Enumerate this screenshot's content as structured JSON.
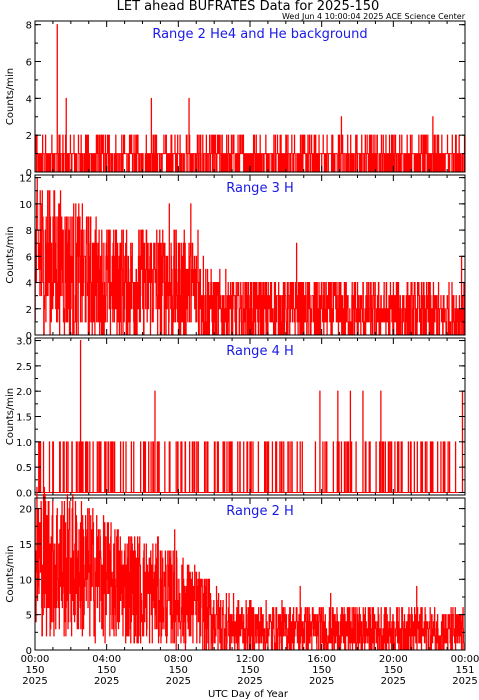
{
  "title": "LET ahead BUFRATES Data for 2025-150",
  "subtitle": "Wed Jun  4 10:00:04 2025 ACE Science Center",
  "xlabel": "UTC Day of Year",
  "x_ticks": [
    {
      "time": "00:00",
      "doy": "150",
      "year": "2025"
    },
    {
      "time": "04:00",
      "doy": "150",
      "year": "2025"
    },
    {
      "time": "08:00",
      "doy": "150",
      "year": "2025"
    },
    {
      "time": "12:00",
      "doy": "150",
      "year": "2025"
    },
    {
      "time": "16:00",
      "doy": "150",
      "year": "2025"
    },
    {
      "time": "20:00",
      "doy": "150",
      "year": "2025"
    },
    {
      "time": "00:00",
      "doy": "151",
      "year": "2025"
    }
  ],
  "colors": {
    "trace": "#ff0000",
    "range_label": "#1a1ae6",
    "axes": "#000000"
  },
  "chart_data": [
    {
      "type": "line",
      "label": "Range 2 He4 and He background",
      "ylabel": "Counts/min",
      "ylim": [
        0,
        8.2
      ],
      "yticks": [
        0,
        2,
        4,
        6,
        8
      ],
      "ytick_labels": [
        "0",
        "2",
        "4",
        "6",
        "8"
      ],
      "x_unit": "hours UTC",
      "xlim": [
        0,
        24
      ],
      "baseline": [
        1,
        0,
        1,
        0,
        0,
        1,
        0,
        1,
        1,
        2,
        0,
        1,
        0,
        1,
        0,
        0,
        1,
        1,
        0,
        2
      ],
      "peaks": [
        {
          "x": 1.25,
          "y": 8
        },
        {
          "x": 1.75,
          "y": 4
        },
        {
          "x": 6.5,
          "y": 4
        },
        {
          "x": 8.6,
          "y": 4
        },
        {
          "x": 17.1,
          "y": 3
        },
        {
          "x": 22.2,
          "y": 3
        }
      ]
    },
    {
      "type": "line",
      "label": "Range 3 H",
      "ylabel": "Counts/min",
      "ylim": [
        0,
        12.2
      ],
      "yticks": [
        0,
        2,
        4,
        6,
        8,
        10,
        12
      ],
      "ytick_labels": [
        "0",
        "2",
        "4",
        "6",
        "8",
        "10",
        "12"
      ],
      "x_unit": "hours UTC",
      "xlim": [
        0,
        24
      ],
      "trend": [
        {
          "x": 0,
          "y": 6
        },
        {
          "x": 2,
          "y": 5
        },
        {
          "x": 4,
          "y": 4
        },
        {
          "x": 7,
          "y": 4
        },
        {
          "x": 9,
          "y": 3.5
        },
        {
          "x": 10,
          "y": 2
        },
        {
          "x": 24,
          "y": 1.5
        }
      ],
      "peaks": [
        {
          "x": 0.3,
          "y": 11
        },
        {
          "x": 0.8,
          "y": 11
        },
        {
          "x": 1.5,
          "y": 9
        },
        {
          "x": 7.5,
          "y": 10
        },
        {
          "x": 8.7,
          "y": 10
        },
        {
          "x": 9.1,
          "y": 8
        },
        {
          "x": 14.6,
          "y": 7
        },
        {
          "x": 23.8,
          "y": 6
        }
      ]
    },
    {
      "type": "line",
      "label": "Range 4 H",
      "ylabel": "Counts/min",
      "ylim": [
        -0.05,
        3.05
      ],
      "yticks": [
        0,
        0.5,
        1,
        1.5,
        2,
        2.5,
        3
      ],
      "ytick_labels": [
        "0.0",
        "0.5",
        "1.0",
        "1.5",
        "2.0",
        "2.5",
        "3.0"
      ],
      "x_unit": "hours UTC",
      "xlim": [
        0,
        24
      ],
      "values_observed": [
        0,
        1,
        2,
        3
      ],
      "peaks": [
        {
          "x": 2.55,
          "y": 3
        },
        {
          "x": 6.7,
          "y": 2
        },
        {
          "x": 15.9,
          "y": 2
        },
        {
          "x": 16.9,
          "y": 2
        },
        {
          "x": 17.6,
          "y": 2
        },
        {
          "x": 18.3,
          "y": 2
        },
        {
          "x": 19.3,
          "y": 2
        },
        {
          "x": 23.85,
          "y": 2
        }
      ]
    },
    {
      "type": "line",
      "label": "Range 2 H",
      "ylabel": "Counts/min",
      "ylim": [
        0,
        21.5
      ],
      "yticks": [
        0,
        5,
        10,
        15,
        20
      ],
      "ytick_labels": [
        "0",
        "5",
        "10",
        "15",
        "20"
      ],
      "x_unit": "hours UTC",
      "xlim": [
        0,
        24
      ],
      "trend": [
        {
          "x": 0,
          "y": 13
        },
        {
          "x": 2,
          "y": 12
        },
        {
          "x": 3,
          "y": 11
        },
        {
          "x": 5,
          "y": 9
        },
        {
          "x": 7,
          "y": 8
        },
        {
          "x": 9,
          "y": 6
        },
        {
          "x": 10.3,
          "y": 4
        },
        {
          "x": 12,
          "y": 3
        },
        {
          "x": 24,
          "y": 2.5
        }
      ],
      "peaks": [
        {
          "x": 0.2,
          "y": 20
        },
        {
          "x": 1,
          "y": 21
        },
        {
          "x": 2.6,
          "y": 21
        },
        {
          "x": 7.8,
          "y": 17
        },
        {
          "x": 14.8,
          "y": 9
        },
        {
          "x": 16.5,
          "y": 8
        },
        {
          "x": 21.3,
          "y": 9
        }
      ]
    }
  ]
}
